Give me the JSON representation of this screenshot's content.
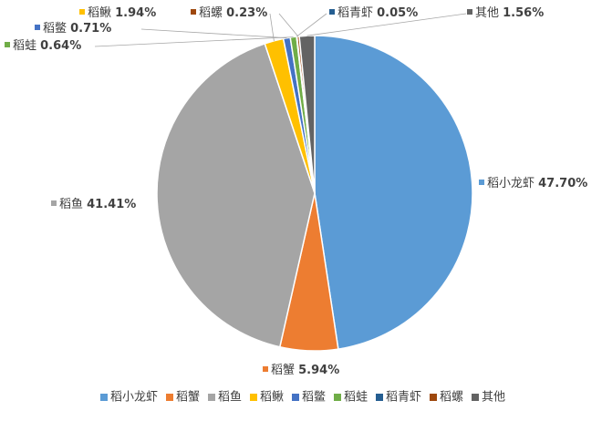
{
  "chart_data": {
    "type": "pie",
    "title": "",
    "legend_position": "bottom",
    "slices": [
      {
        "label": "稻小龙虾",
        "value": 47.7,
        "value_text": "47.70%",
        "color": "#5B9BD5"
      },
      {
        "label": "稻蟹",
        "value": 5.94,
        "value_text": "5.94%",
        "color": "#ED7D31"
      },
      {
        "label": "稻鱼",
        "value": 41.41,
        "value_text": "41.41%",
        "color": "#A5A5A5"
      },
      {
        "label": "稻鳅",
        "value": 1.94,
        "value_text": "1.94%",
        "color": "#FFC000"
      },
      {
        "label": "稻鳖",
        "value": 0.71,
        "value_text": "0.71%",
        "color": "#4472C4"
      },
      {
        "label": "稻蛙",
        "value": 0.64,
        "value_text": "0.64%",
        "color": "#70AD47"
      },
      {
        "label": "稻青虾",
        "value": 0.05,
        "value_text": "0.05%",
        "color": "#255E91"
      },
      {
        "label": "稻螺",
        "value": 0.23,
        "value_text": "0.23%",
        "color": "#9E480E"
      },
      {
        "label": "其他",
        "value": 1.56,
        "value_text": "1.56%",
        "color": "#636363"
      }
    ]
  }
}
